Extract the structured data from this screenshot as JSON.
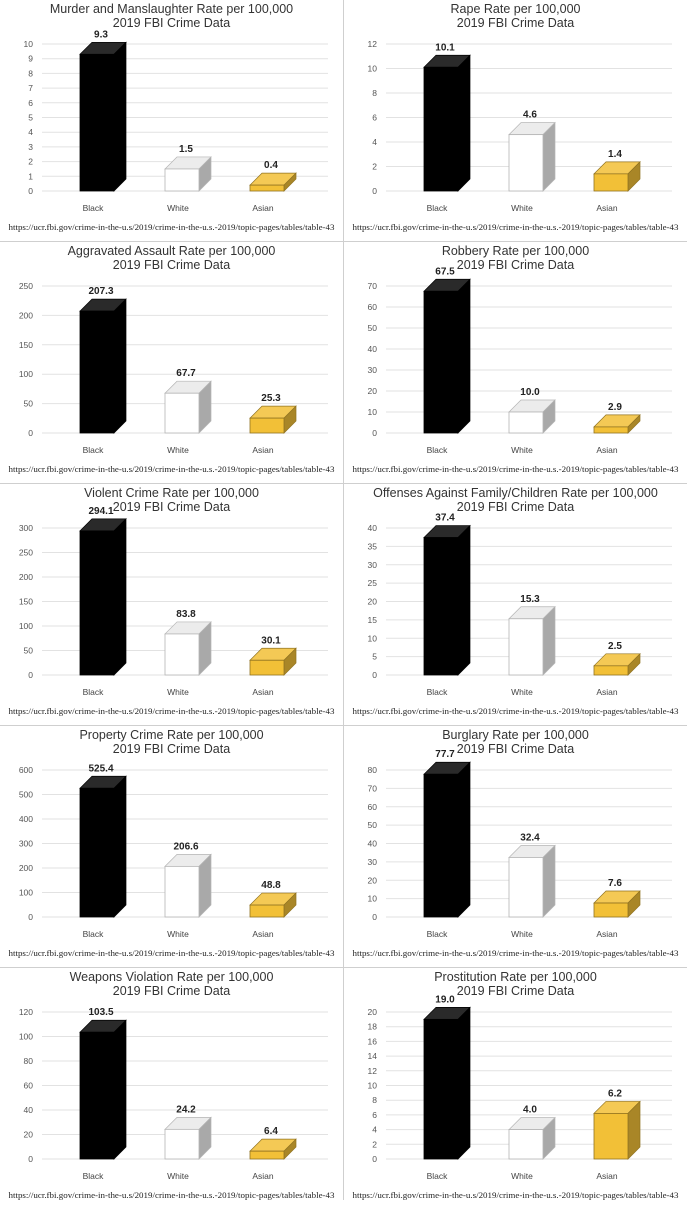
{
  "source_text": "https://ucr.fbi.gov/crime-in-the-u.s/2019/crime-in-the-u.s.-2019/topic-pages/tables/table-43",
  "colors": {
    "black_bar": "#000000",
    "white_bar": "#ffffff",
    "asian_bar": "#f2c037",
    "grid": "#e2e2e2",
    "text": "#333333"
  },
  "chart_data": [
    {
      "type": "bar",
      "title": "Murder and Manslaughter Rate per 100,000",
      "subtitle": "2019 FBI Crime Data",
      "categories": [
        "Black",
        "White",
        "Asian"
      ],
      "values": [
        9.3,
        1.5,
        0.4
      ],
      "labels": [
        "9.3",
        "1.5",
        "0.4"
      ],
      "ylim": [
        0,
        10
      ],
      "yticks": [
        0,
        1,
        2,
        3,
        4,
        5,
        6,
        7,
        8,
        9,
        10
      ],
      "grid": true,
      "xlabel": "",
      "ylabel": ""
    },
    {
      "type": "bar",
      "title": "Rape Rate per 100,000",
      "subtitle": "2019 FBI Crime Data",
      "categories": [
        "Black",
        "White",
        "Asian"
      ],
      "values": [
        10.1,
        4.6,
        1.4
      ],
      "labels": [
        "10.1",
        "4.6",
        "1.4"
      ],
      "ylim": [
        0,
        12
      ],
      "yticks": [
        0,
        2,
        4,
        6,
        8,
        10,
        12
      ],
      "grid": true,
      "xlabel": "",
      "ylabel": ""
    },
    {
      "type": "bar",
      "title": "Aggravated Assault Rate per 100,000",
      "subtitle": "2019 FBI Crime Data",
      "categories": [
        "Black",
        "White",
        "Asian"
      ],
      "values": [
        207.3,
        67.7,
        25.3
      ],
      "labels": [
        "207.3",
        "67.7",
        "25.3"
      ],
      "ylim": [
        0,
        250
      ],
      "yticks": [
        0,
        50,
        100,
        150,
        200,
        250
      ],
      "grid": true,
      "xlabel": "",
      "ylabel": ""
    },
    {
      "type": "bar",
      "title": "Robbery Rate per 100,000",
      "subtitle": "2019 FBI Crime Data",
      "categories": [
        "Black",
        "White",
        "Asian"
      ],
      "values": [
        67.5,
        10.0,
        2.9
      ],
      "labels": [
        "67.5",
        "10.0",
        "2.9"
      ],
      "ylim": [
        0,
        70
      ],
      "yticks": [
        0,
        10,
        20,
        30,
        40,
        50,
        60,
        70
      ],
      "grid": true,
      "xlabel": "",
      "ylabel": ""
    },
    {
      "type": "bar",
      "title": "Violent Crime Rate per 100,000",
      "subtitle": "2019 FBI Crime Data",
      "categories": [
        "Black",
        "White",
        "Asian"
      ],
      "values": [
        294.1,
        83.8,
        30.1
      ],
      "labels": [
        "294.1",
        "83.8",
        "30.1"
      ],
      "ylim": [
        0,
        300
      ],
      "yticks": [
        0,
        50,
        100,
        150,
        200,
        250,
        300
      ],
      "grid": true,
      "xlabel": "",
      "ylabel": ""
    },
    {
      "type": "bar",
      "title": "Offenses Against Family/Children Rate per 100,000",
      "subtitle": "2019 FBI Crime Data",
      "categories": [
        "Black",
        "White",
        "Asian"
      ],
      "values": [
        37.4,
        15.3,
        2.5
      ],
      "labels": [
        "37.4",
        "15.3",
        "2.5"
      ],
      "ylim": [
        0,
        40
      ],
      "yticks": [
        0,
        5,
        10,
        15,
        20,
        25,
        30,
        35,
        40
      ],
      "grid": true,
      "xlabel": "",
      "ylabel": ""
    },
    {
      "type": "bar",
      "title": "Property Crime Rate per 100,000",
      "subtitle": "2019 FBI Crime Data",
      "categories": [
        "Black",
        "White",
        "Asian"
      ],
      "values": [
        525.4,
        206.6,
        48.8
      ],
      "labels": [
        "525.4",
        "206.6",
        "48.8"
      ],
      "ylim": [
        0,
        600
      ],
      "yticks": [
        0,
        100,
        200,
        300,
        400,
        500,
        600
      ],
      "grid": true,
      "xlabel": "",
      "ylabel": ""
    },
    {
      "type": "bar",
      "title": "Burglary Rate per 100,000",
      "subtitle": "2019 FBI Crime Data",
      "categories": [
        "Black",
        "White",
        "Asian"
      ],
      "values": [
        77.7,
        32.4,
        7.6
      ],
      "labels": [
        "77.7",
        "32.4",
        "7.6"
      ],
      "ylim": [
        0,
        80
      ],
      "yticks": [
        0,
        10,
        20,
        30,
        40,
        50,
        60,
        70,
        80
      ],
      "grid": true,
      "xlabel": "",
      "ylabel": ""
    },
    {
      "type": "bar",
      "title": "Weapons Violation Rate per 100,000",
      "subtitle": "2019 FBI Crime Data",
      "categories": [
        "Black",
        "White",
        "Asian"
      ],
      "values": [
        103.5,
        24.2,
        6.4
      ],
      "labels": [
        "103.5",
        "24.2",
        "6.4"
      ],
      "ylim": [
        0,
        120
      ],
      "yticks": [
        0,
        20,
        40,
        60,
        80,
        100,
        120
      ],
      "grid": true,
      "xlabel": "",
      "ylabel": ""
    },
    {
      "type": "bar",
      "title": "Prostitution Rate per 100,000",
      "subtitle": "2019 FBI Crime Data",
      "categories": [
        "Black",
        "White",
        "Asian"
      ],
      "values": [
        19.0,
        4.0,
        6.2
      ],
      "labels": [
        "19.0",
        "4.0",
        "6.2"
      ],
      "ylim": [
        0,
        20
      ],
      "yticks": [
        0,
        2,
        4,
        6,
        8,
        10,
        12,
        14,
        16,
        18,
        20
      ],
      "grid": true,
      "xlabel": "",
      "ylabel": ""
    }
  ]
}
